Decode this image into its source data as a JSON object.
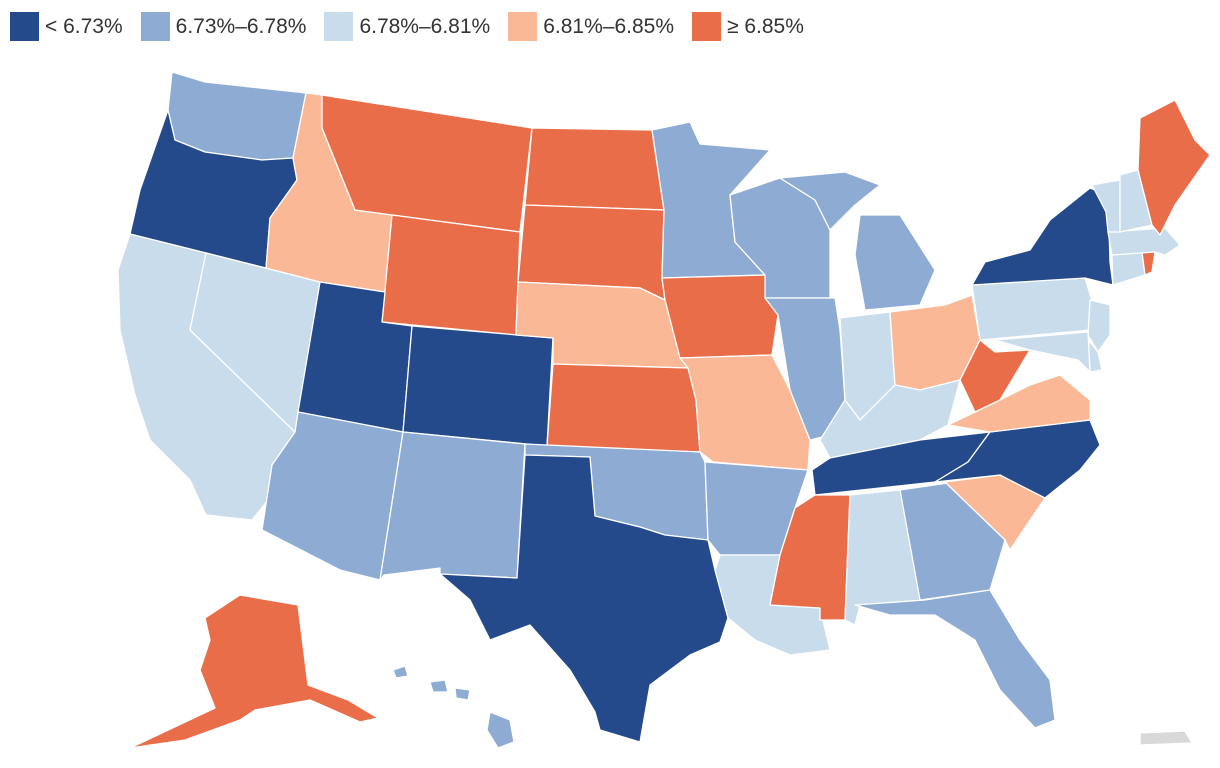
{
  "legend": [
    {
      "label": "< 6.73%",
      "color": "#244a8c"
    },
    {
      "label": "6.73%–6.78%",
      "color": "#8dabd3"
    },
    {
      "label": "6.78%–6.81%",
      "color": "#c8dcec"
    },
    {
      "label": "6.81%–6.85%",
      "color": "#fbb896"
    },
    {
      "label": "≥ 6.85%",
      "color": "#ea6d4a"
    }
  ],
  "no_data_color": "#d9d9d9",
  "states": {
    "WA": 1,
    "OR": 0,
    "CA": 2,
    "NV": 2,
    "ID": 3,
    "MT": 4,
    "WY": 4,
    "UT": 0,
    "AZ": 1,
    "CO": 0,
    "NM": 1,
    "ND": 4,
    "SD": 4,
    "NE": 3,
    "KS": 4,
    "OK": 1,
    "TX": 0,
    "MN": 1,
    "IA": 4,
    "MO": 3,
    "AR": 1,
    "LA": 2,
    "WI": 1,
    "IL": 1,
    "MI": 1,
    "IN": 2,
    "OH": 3,
    "KY": 2,
    "TN": 0,
    "MS": 4,
    "AL": 2,
    "GA": 1,
    "FL": 1,
    "SC": 3,
    "NC": 0,
    "VA": 3,
    "WV": 4,
    "PA": 2,
    "NY": 0,
    "VT": 2,
    "NH": 2,
    "ME": 4,
    "MA": 2,
    "CT": 2,
    "RI": 4,
    "NJ": 2,
    "DE": 2,
    "MD": 2,
    "AK": 4,
    "HI": 1,
    "PR": -1
  }
}
